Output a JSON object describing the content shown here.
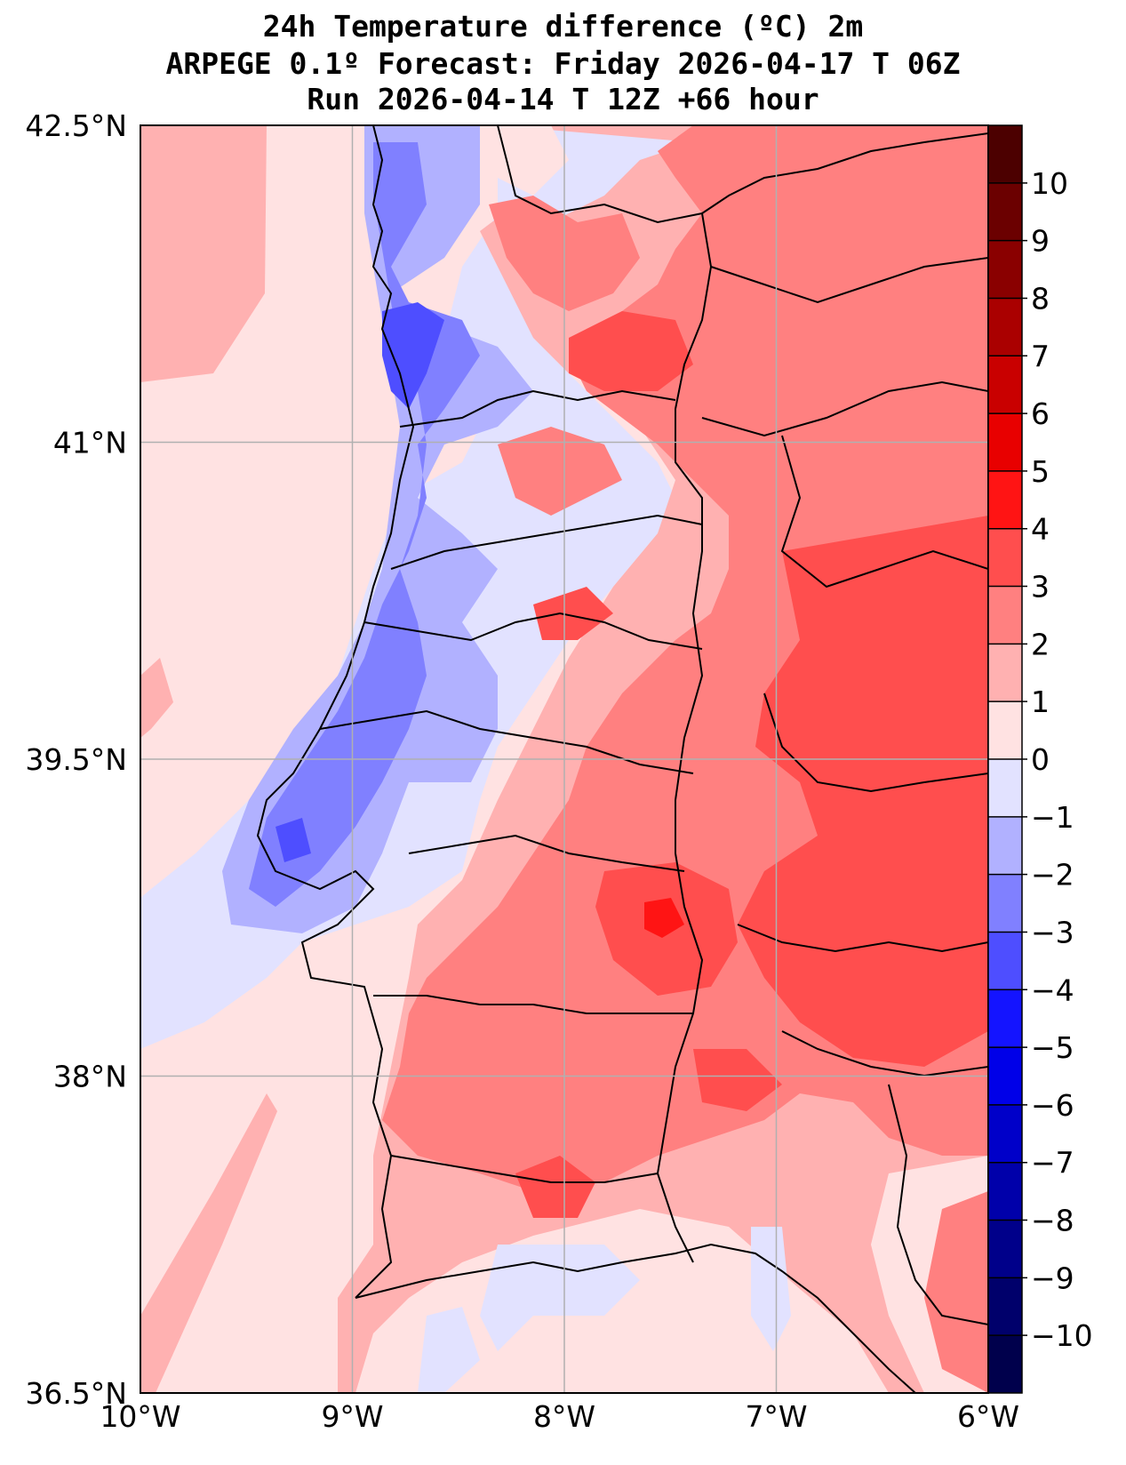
{
  "title": {
    "line1": "24h Temperature difference (ºC) 2m",
    "line2": "ARPEGE 0.1º Forecast: Friday 2026-04-17 T 06Z",
    "line3": "Run 2026-04-14 T 12Z +66 hour"
  },
  "map": {
    "lon_range": [
      -10,
      -6
    ],
    "lat_range": [
      36.5,
      42.5
    ],
    "x_ticks": [
      {
        "lon": -10,
        "label": "10°W"
      },
      {
        "lon": -9,
        "label": "9°W"
      },
      {
        "lon": -8,
        "label": "8°W"
      },
      {
        "lon": -7,
        "label": "7°W"
      },
      {
        "lon": -6,
        "label": "6°W"
      }
    ],
    "y_ticks": [
      {
        "lat": 42.5,
        "label": "42.5°N"
      },
      {
        "lat": 41.0,
        "label": "41°N"
      },
      {
        "lat": 39.5,
        "label": "39.5°N"
      },
      {
        "lat": 38.0,
        "label": "38°N"
      },
      {
        "lat": 36.5,
        "label": "36.5°N"
      }
    ]
  },
  "colorbar": {
    "levels": [
      -11,
      -10,
      -9,
      -8,
      -7,
      -6,
      -5,
      -4,
      -3,
      -2,
      -1,
      0,
      1,
      2,
      3,
      4,
      5,
      6,
      7,
      8,
      9,
      10,
      11
    ],
    "colors": [
      "#00004c",
      "#00006b",
      "#00008a",
      "#0000aa",
      "#0000c9",
      "#0000e8",
      "#1414ff",
      "#4e4eff",
      "#8080ff",
      "#b1b1ff",
      "#e2e2ff",
      "#ffe2e2",
      "#ffb1b1",
      "#ff8080",
      "#ff4e4e",
      "#ff1414",
      "#e80000",
      "#c90000",
      "#aa0000",
      "#8a0000",
      "#6b0000",
      "#4c0000"
    ],
    "tick_labels": [
      "−10",
      "−9",
      "−8",
      "−7",
      "−6",
      "−5",
      "−4",
      "−3",
      "−2",
      "−1",
      "0",
      "1",
      "2",
      "3",
      "4",
      "5",
      "6",
      "7",
      "8",
      "9",
      "10"
    ],
    "tick_values": [
      -10,
      -9,
      -8,
      -7,
      -6,
      -5,
      -4,
      -3,
      -2,
      -1,
      0,
      1,
      2,
      3,
      4,
      5,
      6,
      7,
      8,
      9,
      10
    ]
  }
}
